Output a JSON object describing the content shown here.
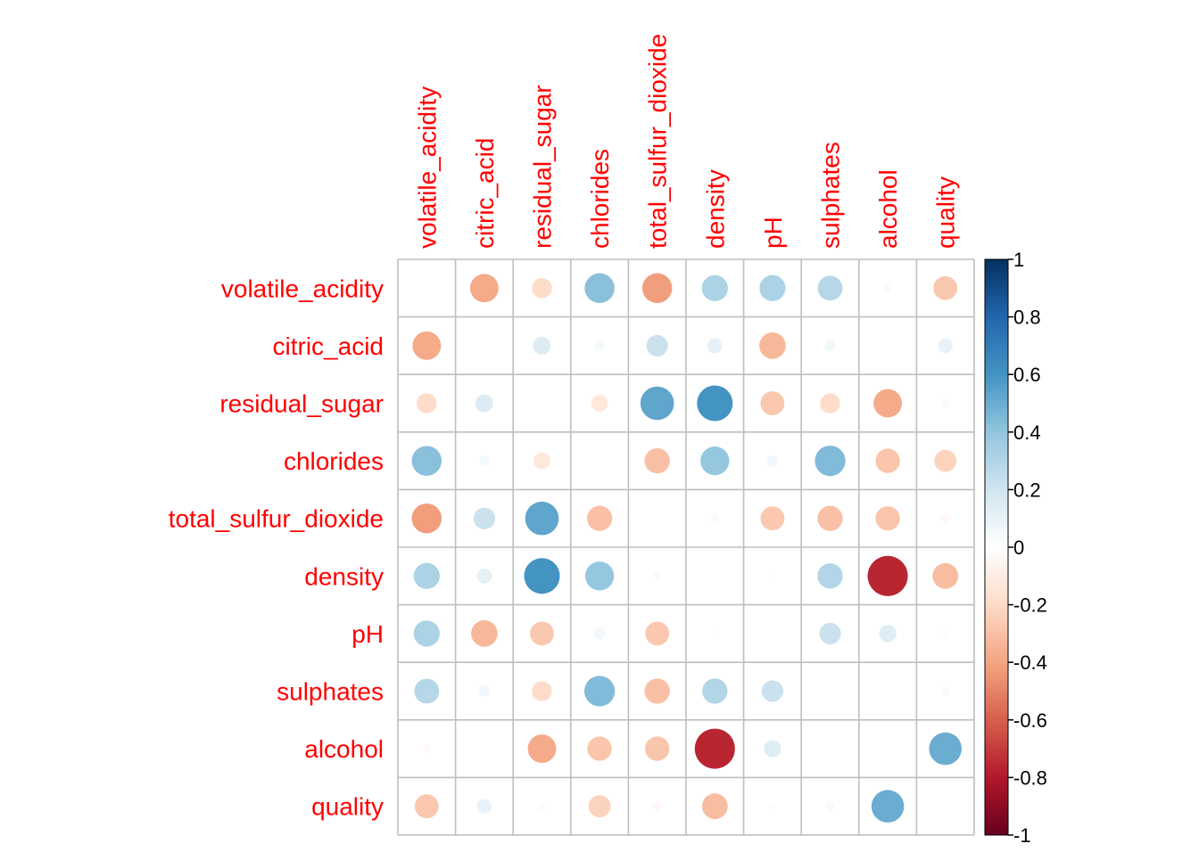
{
  "chart_data": {
    "type": "heatmap",
    "subtype": "correlation-circle",
    "variables": [
      "volatile_acidity",
      "citric_acid",
      "residual_sugar",
      "chlorides",
      "total_sulfur_dioxide",
      "density",
      "pH",
      "sulphates",
      "alcohol",
      "quality"
    ],
    "matrix": [
      [
        null,
        -0.38,
        -0.19,
        0.42,
        -0.42,
        0.32,
        0.32,
        0.29,
        -0.03,
        -0.27
      ],
      [
        -0.38,
        null,
        0.15,
        0.05,
        0.22,
        0.11,
        -0.33,
        0.06,
        0.0,
        0.1
      ],
      [
        -0.19,
        0.15,
        null,
        -0.13,
        0.53,
        0.6,
        -0.27,
        -0.19,
        -0.38,
        -0.03
      ],
      [
        0.42,
        0.05,
        -0.13,
        null,
        -0.3,
        0.39,
        0.06,
        0.44,
        -0.28,
        -0.23
      ],
      [
        -0.42,
        0.22,
        0.53,
        -0.3,
        null,
        0.03,
        -0.27,
        -0.3,
        -0.28,
        -0.04
      ],
      [
        0.32,
        0.11,
        0.6,
        0.39,
        0.03,
        null,
        0.01,
        0.3,
        -0.76,
        -0.31
      ],
      [
        0.32,
        -0.33,
        -0.27,
        0.06,
        -0.27,
        0.01,
        null,
        0.22,
        0.14,
        0.02
      ],
      [
        0.29,
        0.06,
        -0.19,
        0.44,
        -0.3,
        0.3,
        0.22,
        null,
        0.0,
        0.04
      ],
      [
        -0.03,
        0.0,
        -0.38,
        -0.28,
        -0.28,
        -0.76,
        0.14,
        0.0,
        null,
        0.5
      ],
      [
        -0.27,
        0.1,
        -0.03,
        -0.23,
        -0.04,
        -0.31,
        0.02,
        0.04,
        0.5,
        null
      ]
    ],
    "colorbar": {
      "range": [
        -1,
        1
      ],
      "tick_labels": [
        "1",
        "0.8",
        "0.6",
        "0.4",
        "0.2",
        "0",
        "-0.2",
        "-0.4",
        "-0.6",
        "-0.8",
        "-1"
      ],
      "tick_values": [
        1,
        0.8,
        0.6,
        0.4,
        0.2,
        0,
        -0.2,
        -0.4,
        -0.6,
        -0.8,
        -1
      ]
    },
    "label_color": "#FF0000",
    "grid_color": "#BEBEBE",
    "palette": [
      "#67001F",
      "#B2182B",
      "#D6604D",
      "#F4A582",
      "#FDDBC7",
      "#FFFFFF",
      "#D1E5F0",
      "#92C5DE",
      "#4393C3",
      "#2166AC",
      "#053061"
    ],
    "legend": "right"
  }
}
